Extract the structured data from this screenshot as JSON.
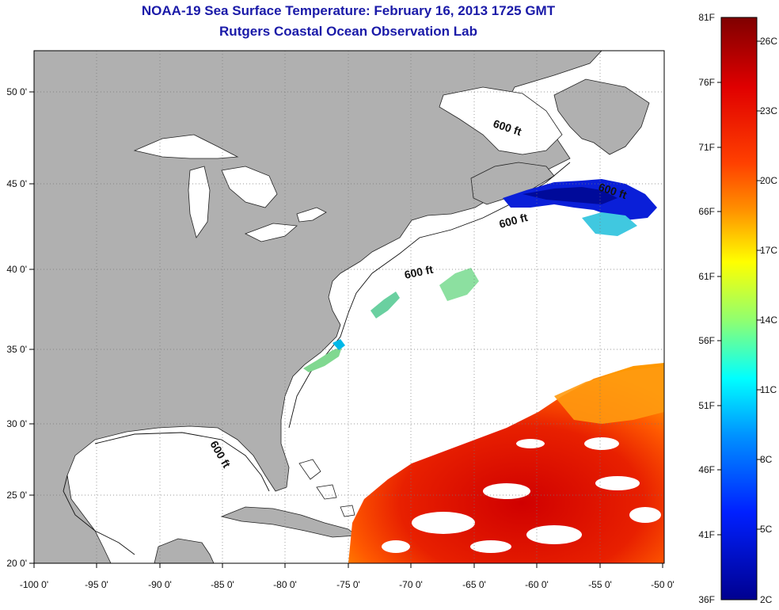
{
  "header": {
    "title": "NOAA-19 Sea Surface Temperature:  February 16, 2013 1725 GMT",
    "subtitle": "Rutgers Coastal Ocean Observation Lab"
  },
  "map": {
    "lon_ticks": [
      "-100 0'",
      "-95 0'",
      "-90 0'",
      "-85 0'",
      "-80 0'",
      "-75 0'",
      "-70 0'",
      "-65 0'",
      "-60 0'",
      "-55 0'",
      "-50 0'"
    ],
    "lat_ticks": [
      "50 0'",
      "45 0'",
      "40 0'",
      "35 0'",
      "30 0'",
      "25 0'",
      "20 0'"
    ],
    "depth_labels": [
      "600 ft",
      "600 ft",
      "600 ft",
      "600 ft",
      "600 ft"
    ],
    "colors": {
      "land": "#b0b0b0",
      "ocean": "#ffffff",
      "grid": "#666666"
    }
  },
  "colorbar": {
    "f_labels": [
      "81F",
      "76F",
      "71F",
      "66F",
      "61F",
      "56F",
      "51F",
      "46F",
      "41F",
      "36F"
    ],
    "c_labels": [
      "26C",
      "23C",
      "20C",
      "17C",
      "14C",
      "11C",
      "8C",
      "5C",
      "2C"
    ],
    "stops": [
      "#7f0000",
      "#ff0000",
      "#ff8000",
      "#ffff00",
      "#80ff80",
      "#00ffff",
      "#0080ff",
      "#0000ff",
      "#00008f"
    ]
  }
}
